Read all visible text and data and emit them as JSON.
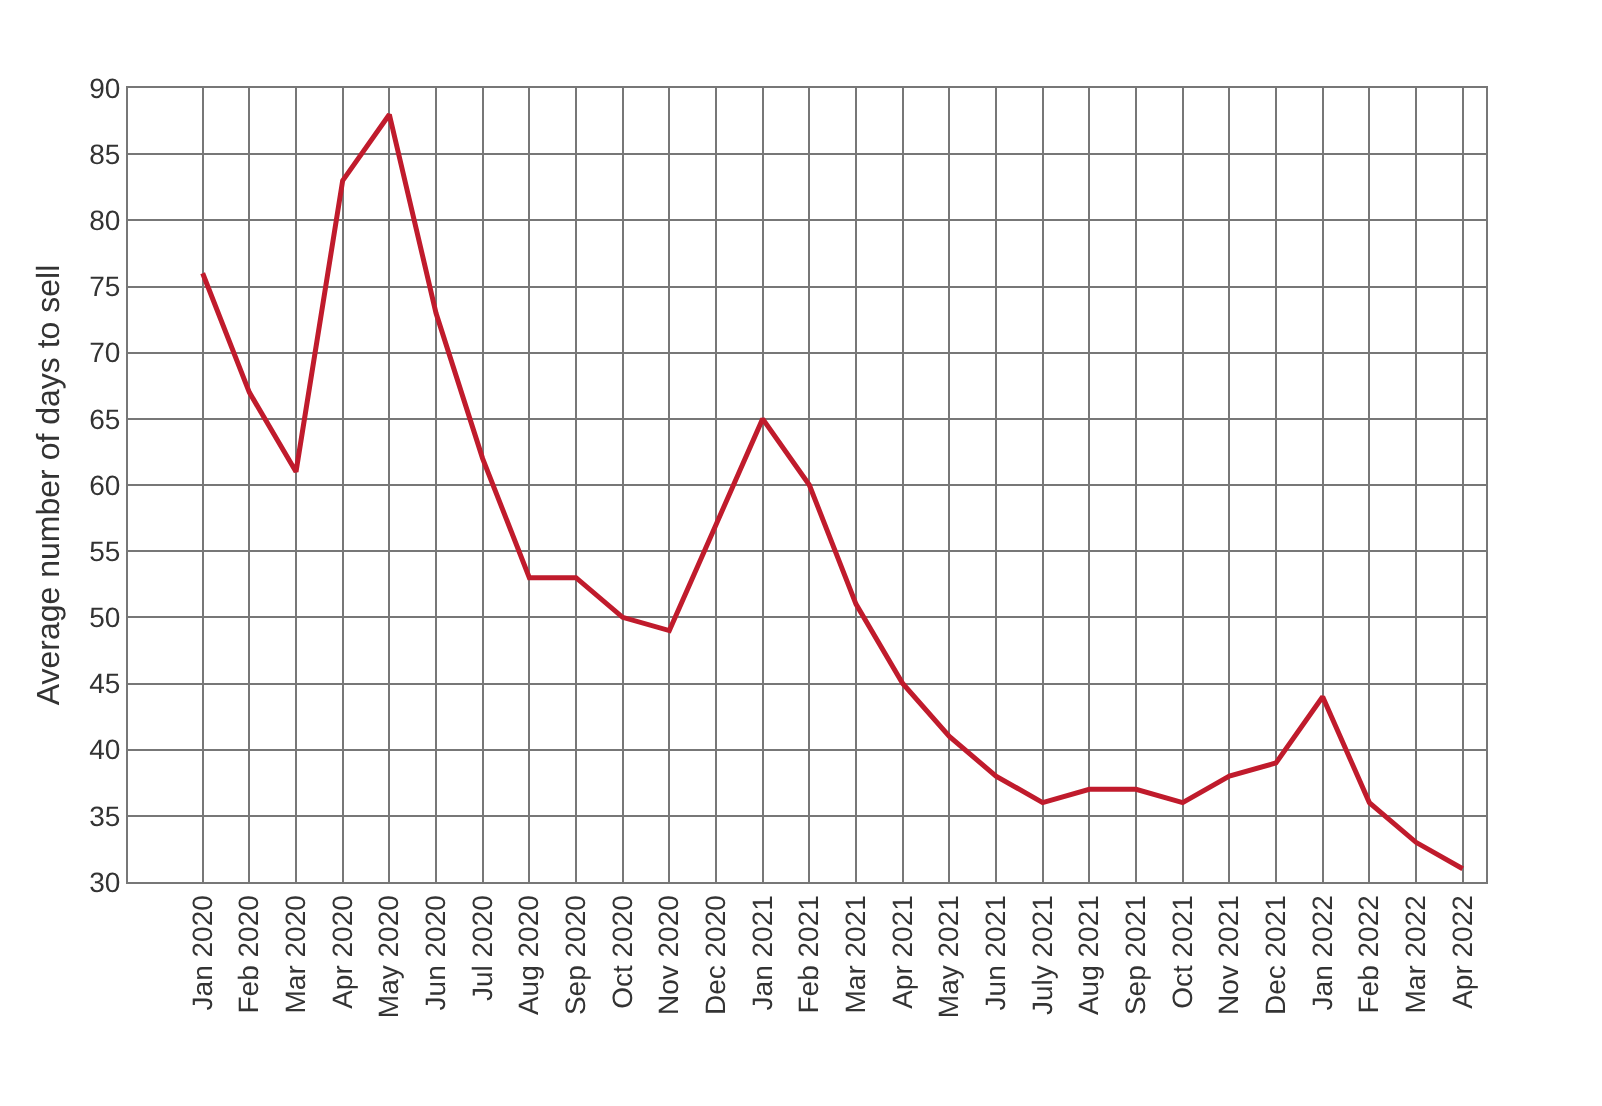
{
  "chart_data": {
    "type": "line",
    "ylabel": "Average number of days to sell",
    "categories": [
      "Jan 2020",
      "Feb 2020",
      "Mar 2020",
      "Apr 2020",
      "May 2020",
      "Jun 2020",
      "Jul 2020",
      "Aug 2020",
      "Sep 2020",
      "Oct 2020",
      "Nov 2020",
      "Dec 2020",
      "Jan 2021",
      "Feb 2021",
      "Mar 2021",
      "Apr 2021",
      "May 2021",
      "Jun 2021",
      "July 2021",
      "Aug 2021",
      "Sep 2021",
      "Oct 2021",
      "Nov 2021",
      "Dec 2021",
      "Jan 2022",
      "Feb 2022",
      "Mar 2022",
      "Apr 2022"
    ],
    "series": [
      {
        "color": "#c01b2c",
        "values": [
          76,
          67,
          61,
          83,
          88,
          73,
          62,
          53,
          53,
          50,
          49,
          57,
          65,
          60,
          51,
          45,
          41,
          38,
          36,
          37,
          37,
          36,
          38,
          39,
          44,
          36,
          33,
          31
        ]
      }
    ],
    "ylim": [
      30,
      90
    ],
    "yticks": [
      30,
      35,
      40,
      45,
      50,
      55,
      60,
      65,
      70,
      75,
      80,
      85,
      90
    ],
    "grid": true,
    "marker": "none",
    "line_style": "solid"
  }
}
